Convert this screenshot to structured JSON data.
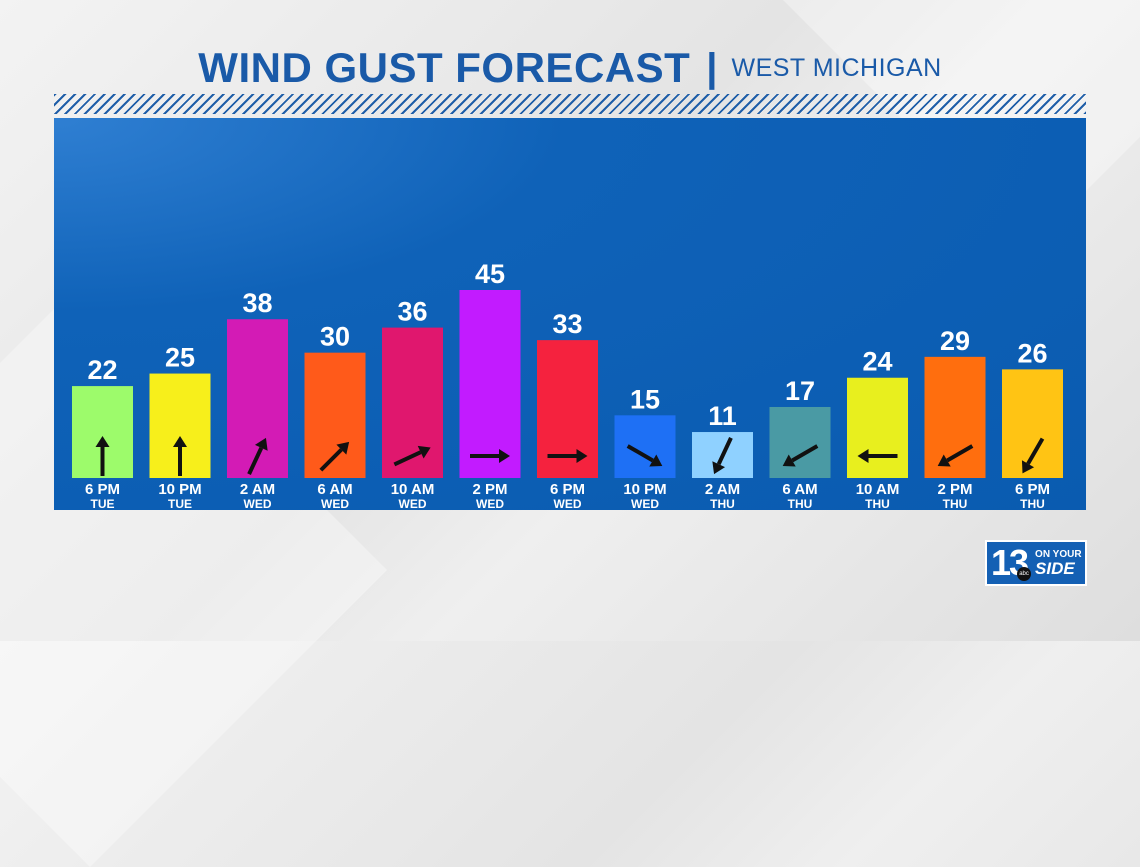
{
  "header": {
    "title": "WIND GUST FORECAST",
    "separator": "|",
    "subtitle": "WEST MICHIGAN"
  },
  "logo": {
    "number": "13",
    "network": "abc",
    "line1": "ON YOUR",
    "line2": "SIDE"
  },
  "chart_data": {
    "type": "bar",
    "title": "WIND GUST FORECAST",
    "subtitle": "WEST MICHIGAN",
    "xlabel": "",
    "ylabel": "",
    "ylim": [
      0,
      50
    ],
    "grid": false,
    "legend": "none",
    "categories": [
      {
        "time": "6 PM",
        "day": "TUE"
      },
      {
        "time": "10 PM",
        "day": "TUE"
      },
      {
        "time": "2 AM",
        "day": "WED"
      },
      {
        "time": "6 AM",
        "day": "WED"
      },
      {
        "time": "10 AM",
        "day": "WED"
      },
      {
        "time": "2 PM",
        "day": "WED"
      },
      {
        "time": "6 PM",
        "day": "WED"
      },
      {
        "time": "10 PM",
        "day": "WED"
      },
      {
        "time": "2 AM",
        "day": "THU"
      },
      {
        "time": "6 AM",
        "day": "THU"
      },
      {
        "time": "10 AM",
        "day": "THU"
      },
      {
        "time": "2 PM",
        "day": "THU"
      },
      {
        "time": "6 PM",
        "day": "THU"
      }
    ],
    "values": [
      22,
      25,
      38,
      30,
      36,
      45,
      33,
      15,
      11,
      17,
      24,
      29,
      26
    ],
    "colors": [
      "#9dfb6b",
      "#f7ef1b",
      "#d31bb5",
      "#ff5a1a",
      "#e0176e",
      "#c21bff",
      "#f5223e",
      "#1e70f5",
      "#8fd1ff",
      "#4a9aa4",
      "#e8ef1e",
      "#ff6e0e",
      "#ffc414"
    ],
    "arrow_direction_degrees": [
      90,
      90,
      65,
      45,
      25,
      0,
      0,
      -30,
      -115,
      -150,
      180,
      -150,
      -120
    ]
  }
}
